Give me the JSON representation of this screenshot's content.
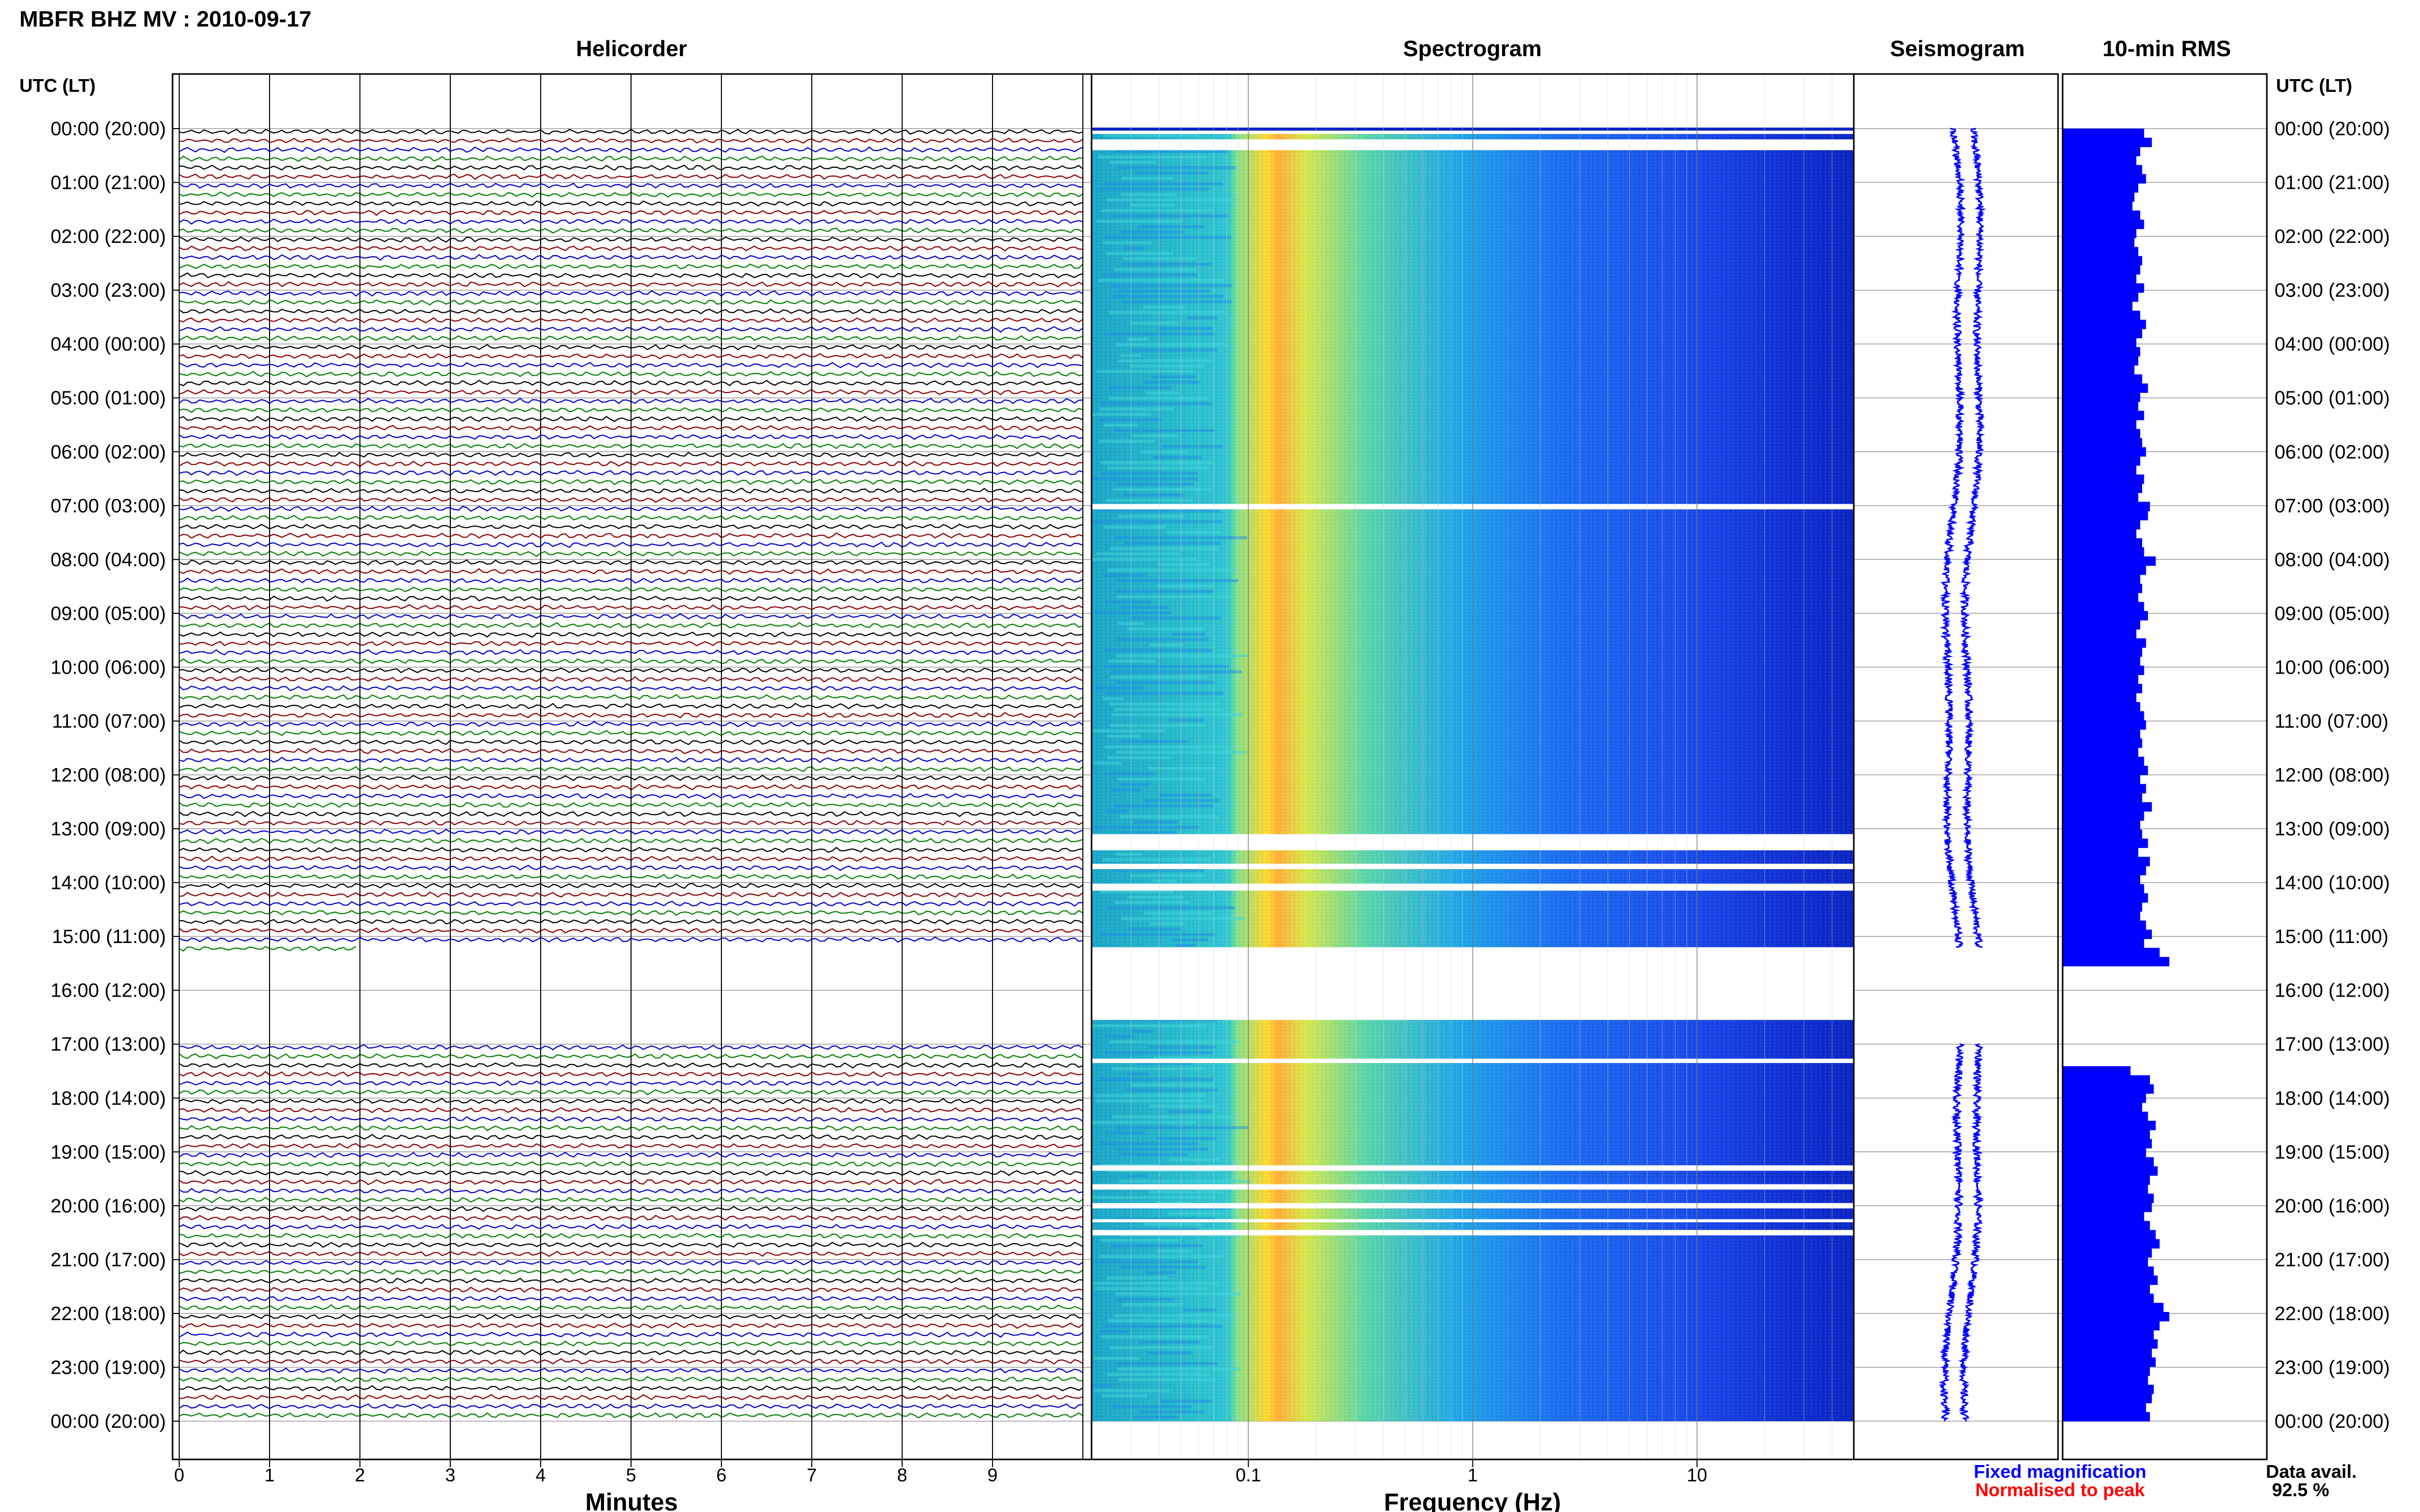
{
  "header": {
    "station_title": "MBFR BHZ MV : 2010-09-17",
    "panel_titles": [
      "Helicorder",
      "Spectrogram",
      "Seismogram",
      "10-min RMS"
    ],
    "time_axis_label_left": "UTC (LT)",
    "time_axis_label_right": "UTC (LT)"
  },
  "footer": {
    "xlabel_helicorder": "Minutes",
    "xlabel_spectrogram": "Frequency (Hz)",
    "legend_fixed": "Fixed magnification",
    "legend_normalised": "Normalised to peak",
    "data_avail_label": "Data avail.",
    "data_avail_value": "92.5 %"
  },
  "colors": {
    "legend_fixed": "#0000ff",
    "legend_normalised": "#ff0000",
    "trace_colors": [
      "#000000",
      "#8b0000",
      "#0000cd",
      "#008000"
    ],
    "rms_fill": "#0000ff",
    "seismogram_color": "#0000ff",
    "spectrogram_colormap": [
      "#000080",
      "#0033ff",
      "#1e90ff",
      "#22d3e6",
      "#7fff7f",
      "#ffff33",
      "#ffa500",
      "#ff3300"
    ]
  },
  "chart_data": {
    "type": "heatmap",
    "time_ticks": [
      "00:00 (20:00)",
      "01:00 (21:00)",
      "02:00 (22:00)",
      "03:00 (23:00)",
      "04:00 (00:00)",
      "05:00 (01:00)",
      "06:00 (02:00)",
      "07:00 (03:00)",
      "08:00 (04:00)",
      "09:00 (05:00)",
      "10:00 (06:00)",
      "11:00 (07:00)",
      "12:00 (08:00)",
      "13:00 (09:00)",
      "14:00 (10:00)",
      "15:00 (11:00)",
      "16:00 (12:00)",
      "17:00 (13:00)",
      "18:00 (14:00)",
      "19:00 (15:00)",
      "20:00 (16:00)",
      "21:00 (17:00)",
      "22:00 (18:00)",
      "23:00 (19:00)",
      "00:00 (20:00)"
    ],
    "helicorder": {
      "xticks": [
        "0",
        "1",
        "2",
        "3",
        "4",
        "5",
        "6",
        "7",
        "8",
        "9"
      ],
      "xlim": [
        0,
        10
      ],
      "line_minutes": 10,
      "gap_hours": [
        15.2,
        17.0
      ]
    },
    "spectrogram": {
      "xticks": [
        "0.1",
        "1",
        "10"
      ],
      "xlim_hz": [
        0.02,
        50
      ],
      "log_x": true,
      "gap_hours": [
        [
          0.2,
          0.4
        ],
        [
          6.97,
          7.07
        ],
        [
          13.1,
          13.4
        ],
        [
          13.65,
          13.75
        ],
        [
          14.02,
          14.15
        ],
        [
          15.2,
          16.55
        ],
        [
          17.27,
          17.35
        ],
        [
          19.25,
          19.35
        ],
        [
          19.6,
          19.7
        ],
        [
          19.95,
          20.05
        ],
        [
          20.25,
          20.3
        ],
        [
          20.45,
          20.55
        ]
      ]
    },
    "seismogram": {
      "gap_hours": [
        15.2,
        17.0
      ]
    },
    "rms_10min": [
      0.42,
      0.46,
      0.4,
      0.38,
      0.41,
      0.43,
      0.39,
      0.37,
      0.36,
      0.4,
      0.42,
      0.38,
      0.37,
      0.39,
      0.41,
      0.4,
      0.38,
      0.42,
      0.39,
      0.36,
      0.4,
      0.43,
      0.41,
      0.38,
      0.4,
      0.39,
      0.37,
      0.41,
      0.44,
      0.4,
      0.39,
      0.42,
      0.38,
      0.4,
      0.41,
      0.43,
      0.4,
      0.38,
      0.42,
      0.41,
      0.39,
      0.45,
      0.44,
      0.4,
      0.38,
      0.41,
      0.42,
      0.48,
      0.43,
      0.4,
      0.41,
      0.39,
      0.42,
      0.44,
      0.4,
      0.38,
      0.43,
      0.41,
      0.4,
      0.42,
      0.39,
      0.41,
      0.38,
      0.4,
      0.42,
      0.43,
      0.4,
      0.41,
      0.39,
      0.42,
      0.44,
      0.4,
      0.43,
      0.41,
      0.46,
      0.42,
      0.4,
      0.41,
      0.44,
      0.39,
      0.45,
      0.43,
      0.4,
      0.42,
      0.44,
      0.41,
      0.4,
      0.43,
      0.46,
      0.42,
      0.5,
      0.55,
      null,
      null,
      null,
      null,
      null,
      null,
      null,
      null,
      null,
      null,
      null,
      0.35,
      0.45,
      0.47,
      0.43,
      0.41,
      0.44,
      0.48,
      0.45,
      0.46,
      0.43,
      0.47,
      0.49,
      0.45,
      0.44,
      0.47,
      0.46,
      0.42,
      0.45,
      0.48,
      0.5,
      0.46,
      0.44,
      0.47,
      0.49,
      0.45,
      0.47,
      0.52,
      0.55,
      0.5,
      0.47,
      0.49,
      0.46,
      0.48,
      0.45,
      0.44,
      0.47,
      0.46,
      0.43,
      0.45
    ],
    "data_availability_percent": 92.5
  }
}
